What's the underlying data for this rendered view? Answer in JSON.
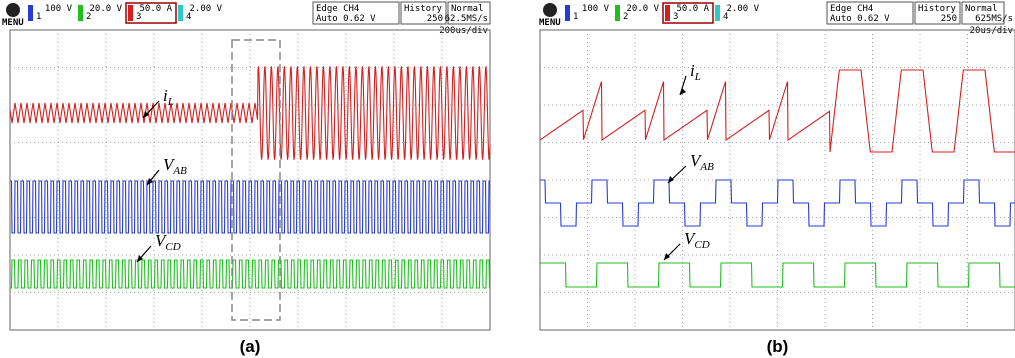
{
  "panels": [
    {
      "header": {
        "menu": "MENU",
        "channels": [
          {
            "num": "1",
            "scale": "100 V"
          },
          {
            "num": "2",
            "scale": "20.0 V"
          },
          {
            "num": "3",
            "scale": "50.0 A"
          },
          {
            "num": "4",
            "scale": "2.00 V"
          }
        ],
        "trigger": [
          "Edge CH4",
          "Auto 0.62 V"
        ],
        "history": [
          "History",
          "250"
        ],
        "mode": [
          "Normal",
          "62.5MS/s"
        ],
        "timebase": "200us/div"
      },
      "labels": [
        {
          "base": "i",
          "sub": "L"
        },
        {
          "base": "V",
          "sub": "AB"
        },
        {
          "base": "V",
          "sub": "CD"
        }
      ],
      "caption": "(a)"
    },
    {
      "header": {
        "menu": "MENU",
        "channels": [
          {
            "num": "1",
            "scale": "100 V"
          },
          {
            "num": "2",
            "scale": "20.0 V"
          },
          {
            "num": "3",
            "scale": "50.0 A"
          },
          {
            "num": "4",
            "scale": "2.00 V"
          }
        ],
        "trigger": [
          "Edge CH4",
          "Auto 0.62 V"
        ],
        "history": [
          "History",
          "250"
        ],
        "mode": [
          "Normal",
          "625MS/s"
        ],
        "timebase": "20us/div"
      },
      "labels": [
        {
          "base": "i",
          "sub": "L"
        },
        {
          "base": "V",
          "sub": "AB"
        },
        {
          "base": "V",
          "sub": "CD"
        }
      ],
      "caption": "(b)"
    }
  ]
}
